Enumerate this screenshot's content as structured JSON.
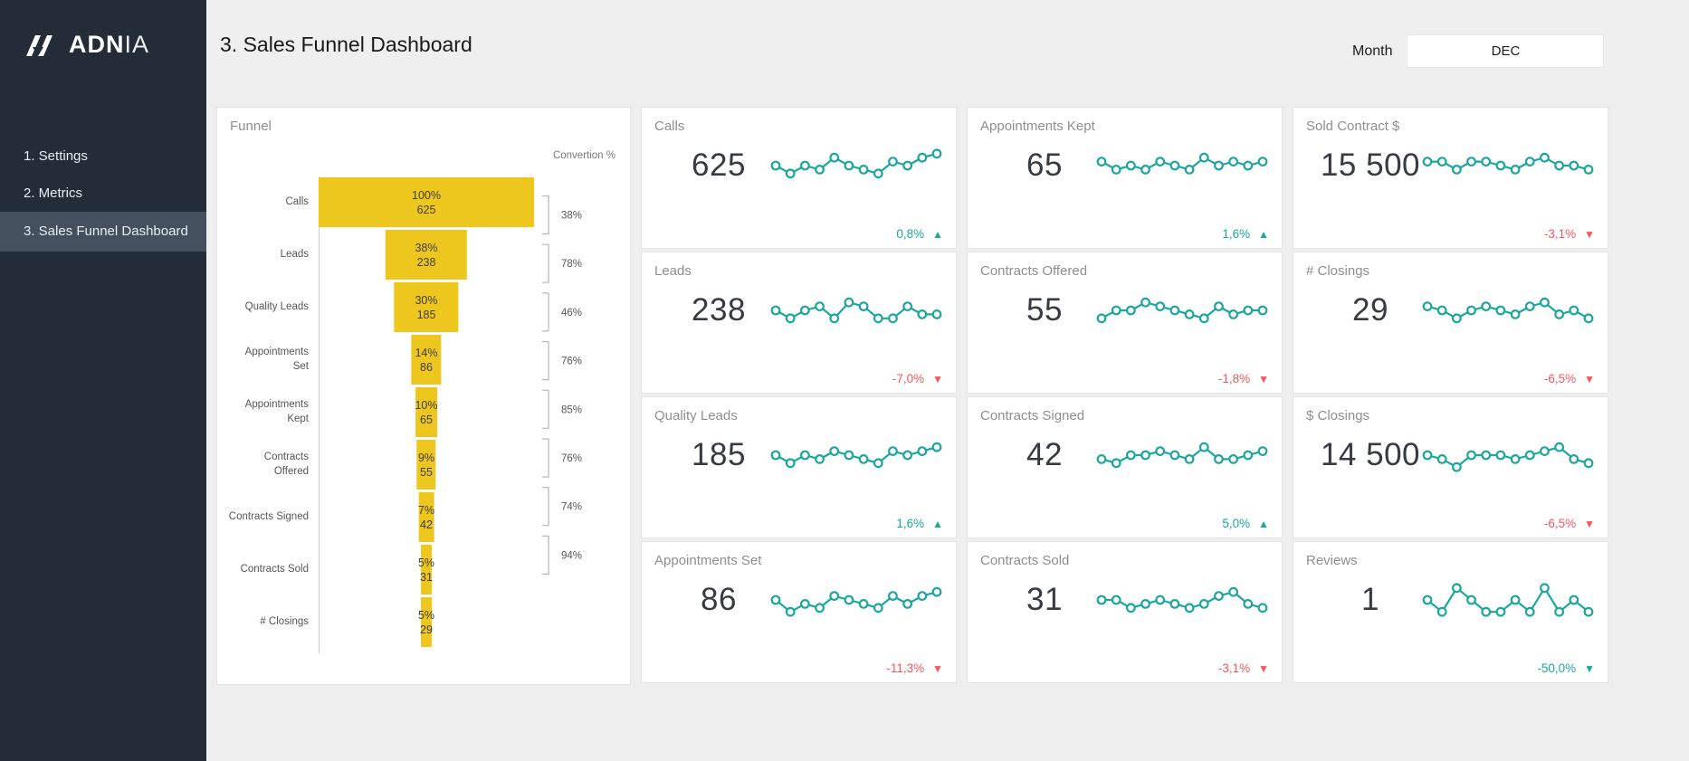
{
  "sidebar": {
    "logo": {
      "bold": "ADN",
      "light": "IA",
      "icon": "adnia-logo-icon"
    },
    "items": [
      {
        "label": "1. Settings",
        "active": false
      },
      {
        "label": "2. Metrics",
        "active": false
      },
      {
        "label": "3. Sales Funnel Dashboard",
        "active": true
      }
    ]
  },
  "header": {
    "title": "3. Sales Funnel Dashboard",
    "month_label": "Month",
    "month_value": "DEC"
  },
  "colors": {
    "accent_teal": "#1aa7a0",
    "negative_red": "#f7565c",
    "funnel_yellow": "#edc71e",
    "sidebar_bg": "#232c37",
    "sidebar_active": "#44505d",
    "page_bg": "#efefef"
  },
  "chart_data": [
    {
      "type": "bar",
      "title": "Funnel",
      "conversion_header": "Convertion %",
      "stages": [
        {
          "label": "Calls",
          "pct": "100%",
          "value": "625",
          "width_pct": 100
        },
        {
          "label": "Leads",
          "pct": "38%",
          "value": "238",
          "width_pct": 38
        },
        {
          "label": "Quality Leads",
          "pct": "30%",
          "value": "185",
          "width_pct": 30
        },
        {
          "label": "Appointments Set",
          "pct": "14%",
          "value": "86",
          "width_pct": 14
        },
        {
          "label": "Appointments Kept",
          "pct": "10%",
          "value": "65",
          "width_pct": 10
        },
        {
          "label": "Contracts Offered",
          "pct": "9%",
          "value": "55",
          "width_pct": 9
        },
        {
          "label": "Contracts Signed",
          "pct": "7%",
          "value": "42",
          "width_pct": 7
        },
        {
          "label": "Contracts Sold",
          "pct": "5%",
          "value": "31",
          "width_pct": 5
        },
        {
          "label": "# Closings",
          "pct": "5%",
          "value": "29",
          "width_pct": 5
        }
      ],
      "conversions": [
        "38%",
        "78%",
        "46%",
        "76%",
        "85%",
        "76%",
        "74%",
        "94%"
      ]
    }
  ],
  "cards": [
    {
      "title": "Calls",
      "value": "625",
      "delta": "0,8%",
      "arrow": "▲",
      "delta_color": "teal",
      "spark": [
        5,
        3,
        5,
        4,
        7,
        5,
        4,
        3,
        6,
        5,
        7,
        8
      ]
    },
    {
      "title": "Appointments Kept",
      "value": "65",
      "delta": "1,6%",
      "arrow": "▲",
      "delta_color": "teal",
      "spark": [
        6,
        4,
        5,
        4,
        6,
        5,
        4,
        7,
        5,
        6,
        5,
        6
      ]
    },
    {
      "title": "Sold Contract $",
      "value": "15 500",
      "delta": "-3,1%",
      "arrow": "▼",
      "delta_color": "red",
      "spark": [
        6,
        6,
        4,
        6,
        6,
        5,
        4,
        6,
        7,
        5,
        5,
        4
      ]
    },
    {
      "title": "Leads",
      "value": "238",
      "delta": "-7,0%",
      "arrow": "▼",
      "delta_color": "red",
      "spark": [
        5,
        3,
        5,
        6,
        3,
        7,
        6,
        3,
        3,
        6,
        4,
        4
      ]
    },
    {
      "title": "Contracts Offered",
      "value": "55",
      "delta": "-1,8%",
      "arrow": "▼",
      "delta_color": "red",
      "spark": [
        3,
        5,
        5,
        7,
        6,
        5,
        4,
        3,
        6,
        4,
        5,
        5
      ]
    },
    {
      "title": "# Closings",
      "value": "29",
      "delta": "-6,5%",
      "arrow": "▼",
      "delta_color": "red",
      "spark": [
        6,
        5,
        3,
        5,
        6,
        5,
        4,
        6,
        7,
        4,
        5,
        3
      ]
    },
    {
      "title": "Quality Leads",
      "value": "185",
      "delta": "1,6%",
      "arrow": "▲",
      "delta_color": "teal",
      "spark": [
        5,
        3,
        5,
        4,
        6,
        5,
        4,
        3,
        6,
        5,
        6,
        7
      ]
    },
    {
      "title": "Contracts Signed",
      "value": "42",
      "delta": "5,0%",
      "arrow": "▲",
      "delta_color": "teal",
      "spark": [
        4,
        3,
        5,
        5,
        6,
        5,
        4,
        7,
        4,
        4,
        5,
        6
      ]
    },
    {
      "title": "$ Closings",
      "value": "14 500",
      "delta": "-6,5%",
      "arrow": "▼",
      "delta_color": "red",
      "spark": [
        5,
        4,
        2,
        5,
        5,
        5,
        4,
        5,
        6,
        7,
        4,
        3
      ]
    },
    {
      "title": "Appointments Set",
      "value": "86",
      "delta": "-11,3%",
      "arrow": "▼",
      "delta_color": "red",
      "spark": [
        5,
        2,
        4,
        3,
        6,
        5,
        4,
        3,
        6,
        4,
        6,
        7
      ]
    },
    {
      "title": "Contracts Sold",
      "value": "31",
      "delta": "-3,1%",
      "arrow": "▼",
      "delta_color": "red",
      "spark": [
        5,
        5,
        3,
        4,
        5,
        4,
        3,
        4,
        6,
        7,
        4,
        3
      ]
    },
    {
      "title": "Reviews",
      "value": "1",
      "delta": "-50,0%",
      "arrow": "▼",
      "delta_color": "teal",
      "spark": [
        5,
        2,
        8,
        5,
        2,
        2,
        5,
        2,
        8,
        2,
        5,
        2
      ]
    }
  ]
}
